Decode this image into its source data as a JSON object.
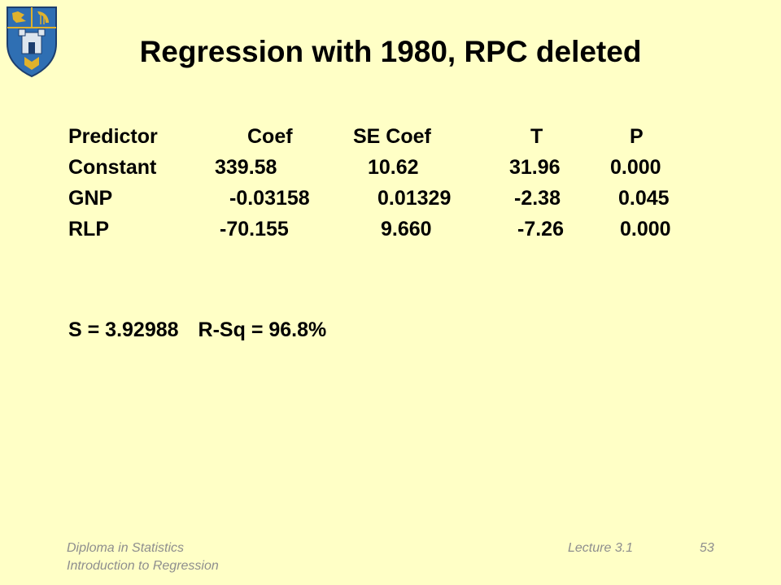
{
  "slide": {
    "title": "Regression with 1980, RPC deleted"
  },
  "table": {
    "headers": [
      "Predictor",
      "Coef",
      "SE Coef",
      "T",
      "P"
    ],
    "rows": [
      [
        "Constant",
        "339.58",
        "10.62",
        "31.96",
        "0.000"
      ],
      [
        "GNP",
        "-0.03158",
        "0.01329",
        "-2.38",
        "0.045"
      ],
      [
        "RLP",
        "-70.155",
        "9.660",
        "-7.26",
        "0.000"
      ]
    ]
  },
  "summary": {
    "s": "S = 3.92988",
    "rsq": "R-Sq = 96.8%"
  },
  "footer": {
    "course_line1": "Diploma in Statistics",
    "course_line2": "Introduction to Regression",
    "lecture": "Lecture 3.1",
    "page": "53"
  },
  "colors": {
    "background": "#FFFFC6",
    "crest_blue": "#2F6FB3",
    "crest_gold": "#E0B22C"
  },
  "icons": {
    "crest": "college-crest-icon"
  }
}
